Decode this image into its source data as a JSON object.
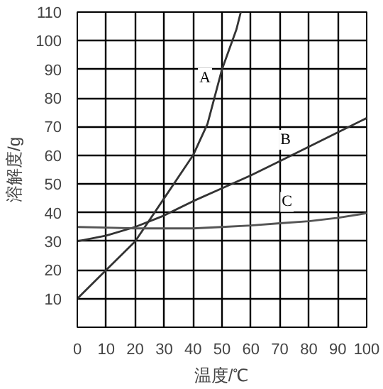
{
  "chart_data": {
    "type": "line",
    "xlabel": "温度/℃",
    "ylabel": "溶解度/g",
    "xlim": [
      0,
      100
    ],
    "ylim": [
      0,
      110
    ],
    "xticks": [
      0,
      10,
      20,
      30,
      40,
      50,
      60,
      70,
      80,
      90,
      100
    ],
    "yticks": [
      10,
      20,
      30,
      40,
      50,
      60,
      70,
      80,
      90,
      100,
      110
    ],
    "grid": true,
    "marker": "none",
    "line_style": "solid",
    "series": [
      {
        "name": "A",
        "color": "#333333",
        "x": [
          0,
          10,
          20,
          30,
          40,
          45,
          50,
          55,
          56.5
        ],
        "values": [
          10,
          20,
          30,
          45,
          60,
          71,
          90,
          104,
          110
        ]
      },
      {
        "name": "B",
        "color": "#333333",
        "x": [
          0,
          10,
          20,
          30,
          40,
          50,
          60,
          70,
          80,
          90,
          100
        ],
        "values": [
          30,
          32,
          35,
          39,
          44,
          48.5,
          53,
          58,
          63,
          68,
          73
        ]
      },
      {
        "name": "C",
        "color": "#555555",
        "x": [
          0,
          10,
          20,
          30,
          40,
          50,
          60,
          70,
          80,
          90,
          100
        ],
        "values": [
          35,
          34.8,
          34.5,
          34.5,
          34.5,
          35,
          35.5,
          36.3,
          37,
          38.2,
          39.8
        ]
      }
    ]
  }
}
